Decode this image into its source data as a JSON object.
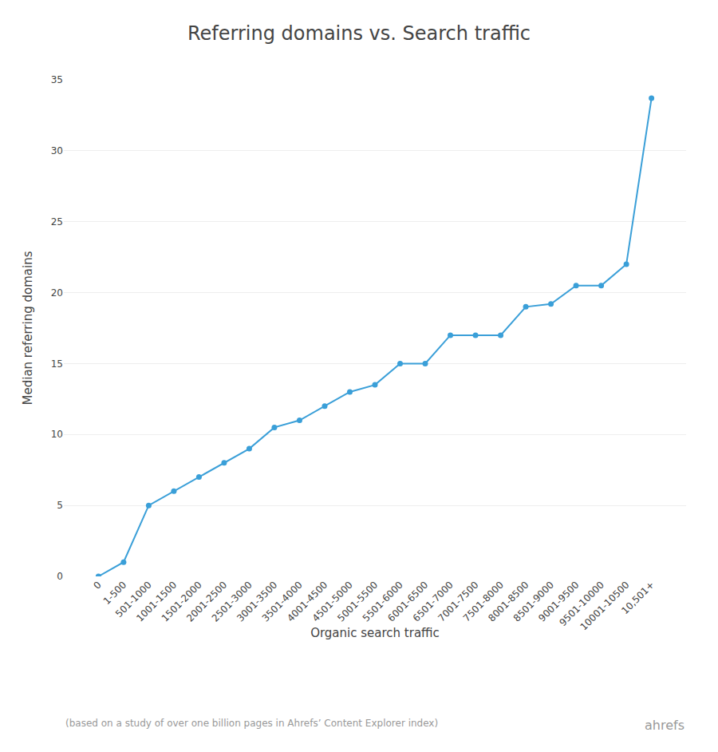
{
  "chart_data": {
    "type": "line",
    "title": "Referring domains vs. Search traffic",
    "x_label": "Organic search traffic",
    "y_label": "Median referring domains",
    "annotations": [
      "(based on a study of over one billion pages in Ahrefs’ Content Explorer index)",
      "ahrefs"
    ],
    "categories": [
      "0",
      "1-500",
      "501-1000",
      "1001-1500",
      "1501-2000",
      "2001-2500",
      "2501-3000",
      "3001-3500",
      "3501-4000",
      "4001-4500",
      "4501-5000",
      "5001-5500",
      "5501-6000",
      "6001-6500",
      "6501-7000",
      "7001-7500",
      "7501-8000",
      "8001-8500",
      "8501-9000",
      "9001-9500",
      "9501-10000",
      "10001-10500",
      "10,501+"
    ],
    "values": [
      0,
      1,
      5,
      6,
      7,
      8,
      9,
      10.5,
      11,
      12,
      13,
      13.5,
      15,
      15,
      17,
      17,
      17,
      19,
      19.2,
      20.5,
      20.5,
      22,
      33.7
    ],
    "color": "#3a9fd8",
    "marker": "circle",
    "ylim": [
      0,
      35
    ],
    "yticks": [
      0,
      5,
      10,
      15,
      20,
      25,
      30,
      35
    ],
    "grid": true
  }
}
